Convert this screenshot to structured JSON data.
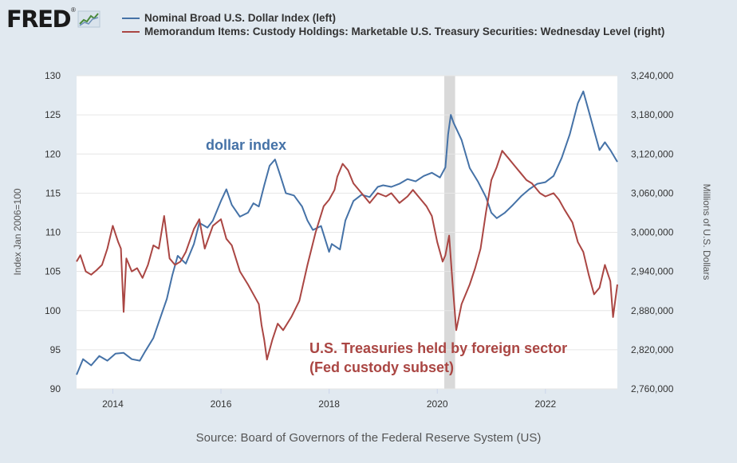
{
  "logo": {
    "text": "FRED",
    "registered": "®",
    "icon": "fred-chart-icon"
  },
  "legend": [
    {
      "label": "Nominal Broad U.S. Dollar Index (left)",
      "color": "#4572a7"
    },
    {
      "label": "Memorandum Items: Custody Holdings: Marketable U.S. Treasury Securities: Wednesday Level (right)",
      "color": "#aa4643"
    }
  ],
  "source": "Source: Board of Governors of the Federal Reserve System (US)",
  "chart_data": {
    "type": "line",
    "title": "",
    "xlabel": "",
    "ylabel_left": "Index Jan 2006=100",
    "ylabel_right": "Millions of U.S. Dollars",
    "x_ticks": [
      "2014",
      "2016",
      "2018",
      "2020",
      "2022"
    ],
    "y_left_ticks": [
      "130",
      "125",
      "120",
      "115",
      "110",
      "105",
      "100",
      "95",
      "90"
    ],
    "y_right_ticks": [
      "3,240,000",
      "3,180,000",
      "3,120,000",
      "3,060,000",
      "3,000,000",
      "2,940,000",
      "2,880,000",
      "2,820,000",
      "2,760,000"
    ],
    "xlim": [
      2013.33,
      2023.33
    ],
    "ylim_left": [
      90,
      130
    ],
    "ylim_right": [
      2760000,
      3240000
    ],
    "recession_shading": [
      2020.13,
      2020.33
    ],
    "grid": true,
    "annotations": [
      {
        "text": "dollar index",
        "color": "#4572a7"
      },
      {
        "text": "U.S. Treasuries held by foreign sector",
        "color": "#aa4643"
      },
      {
        "text": "(Fed custody subset)",
        "color": "#aa4643"
      }
    ],
    "series": [
      {
        "name": "Nominal Broad U.S. Dollar Index (left)",
        "axis": "left",
        "color": "#4572a7",
        "x": [
          2013.33,
          2013.45,
          2013.6,
          2013.75,
          2013.9,
          2014.05,
          2014.2,
          2014.35,
          2014.5,
          2014.6,
          2014.75,
          2014.9,
          2015.0,
          2015.1,
          2015.2,
          2015.35,
          2015.5,
          2015.6,
          2015.75,
          2015.85,
          2016.0,
          2016.1,
          2016.2,
          2016.35,
          2016.5,
          2016.6,
          2016.7,
          2016.8,
          2016.9,
          2017.0,
          2017.1,
          2017.2,
          2017.35,
          2017.5,
          2017.6,
          2017.7,
          2017.85,
          2018.0,
          2018.05,
          2018.2,
          2018.3,
          2018.45,
          2018.6,
          2018.75,
          2018.9,
          2019.0,
          2019.15,
          2019.3,
          2019.45,
          2019.6,
          2019.75,
          2019.9,
          2020.05,
          2020.15,
          2020.2,
          2020.25,
          2020.3,
          2020.45,
          2020.6,
          2020.75,
          2020.9,
          2021.0,
          2021.1,
          2021.25,
          2021.4,
          2021.55,
          2021.7,
          2021.85,
          2022.0,
          2022.15,
          2022.3,
          2022.45,
          2022.6,
          2022.7,
          2022.8,
          2022.9,
          2023.0,
          2023.1,
          2023.2,
          2023.33
        ],
        "values": [
          91.8,
          93.8,
          93.0,
          94.2,
          93.6,
          94.5,
          94.6,
          93.8,
          93.6,
          94.8,
          96.5,
          99.5,
          101.5,
          104.5,
          107.0,
          106.0,
          108.5,
          111.2,
          110.6,
          111.5,
          114.0,
          115.5,
          113.5,
          112.0,
          112.5,
          113.7,
          113.3,
          116.0,
          118.5,
          119.3,
          117.2,
          115.0,
          114.7,
          113.3,
          111.5,
          110.3,
          110.8,
          107.5,
          108.5,
          107.8,
          111.5,
          114.0,
          114.8,
          114.5,
          115.8,
          116.0,
          115.8,
          116.2,
          116.8,
          116.5,
          117.2,
          117.6,
          117.0,
          118.3,
          122.5,
          125.0,
          124.0,
          121.8,
          118.2,
          116.5,
          114.5,
          112.5,
          111.8,
          112.5,
          113.5,
          114.6,
          115.5,
          116.2,
          116.4,
          117.2,
          119.5,
          122.5,
          126.5,
          128.0,
          125.5,
          123.0,
          120.5,
          121.5,
          120.5,
          119.0
        ]
      },
      {
        "name": "Memorandum Items: Custody Holdings: Marketable U.S. Treasury Securities: Wednesday Level (right)",
        "axis": "right",
        "color": "#aa4643",
        "x": [
          2013.33,
          2013.4,
          2013.5,
          2013.6,
          2013.7,
          2013.8,
          2013.9,
          2014.0,
          2014.1,
          2014.15,
          2014.2,
          2014.25,
          2014.35,
          2014.45,
          2014.55,
          2014.65,
          2014.75,
          2014.85,
          2014.95,
          2015.05,
          2015.15,
          2015.25,
          2015.35,
          2015.5,
          2015.6,
          2015.7,
          2015.85,
          2016.0,
          2016.1,
          2016.2,
          2016.35,
          2016.5,
          2016.6,
          2016.7,
          2016.75,
          2016.8,
          2016.85,
          2016.95,
          2017.05,
          2017.15,
          2017.3,
          2017.45,
          2017.6,
          2017.75,
          2017.9,
          2018.0,
          2018.1,
          2018.15,
          2018.25,
          2018.35,
          2018.45,
          2018.6,
          2018.75,
          2018.9,
          2019.05,
          2019.15,
          2019.3,
          2019.45,
          2019.55,
          2019.7,
          2019.8,
          2019.9,
          2020.0,
          2020.1,
          2020.15,
          2020.22,
          2020.28,
          2020.35,
          2020.45,
          2020.6,
          2020.7,
          2020.8,
          2020.9,
          2021.0,
          2021.1,
          2021.2,
          2021.3,
          2021.45,
          2021.55,
          2021.65,
          2021.75,
          2021.9,
          2022.0,
          2022.15,
          2022.25,
          2022.35,
          2022.5,
          2022.6,
          2022.7,
          2022.8,
          2022.9,
          2023.0,
          2023.1,
          2023.2,
          2023.25,
          2023.33
        ],
        "values": [
          2955000,
          2965000,
          2940000,
          2935000,
          2942000,
          2950000,
          2975000,
          3010000,
          2985000,
          2975000,
          2878000,
          2960000,
          2940000,
          2945000,
          2930000,
          2950000,
          2980000,
          2975000,
          3025000,
          2960000,
          2950000,
          2955000,
          2970000,
          3005000,
          3020000,
          2975000,
          3010000,
          3020000,
          2990000,
          2980000,
          2940000,
          2920000,
          2905000,
          2890000,
          2858000,
          2835000,
          2805000,
          2835000,
          2860000,
          2850000,
          2870000,
          2895000,
          2950000,
          3000000,
          3040000,
          3050000,
          3065000,
          3085000,
          3105000,
          3095000,
          3075000,
          3060000,
          3045000,
          3060000,
          3055000,
          3060000,
          3045000,
          3055000,
          3065000,
          3050000,
          3040000,
          3025000,
          2985000,
          2955000,
          2965000,
          2995000,
          2925000,
          2850000,
          2890000,
          2920000,
          2945000,
          2975000,
          3030000,
          3080000,
          3100000,
          3125000,
          3115000,
          3100000,
          3090000,
          3080000,
          3075000,
          3060000,
          3055000,
          3060000,
          3050000,
          3035000,
          3015000,
          2985000,
          2970000,
          2935000,
          2905000,
          2915000,
          2950000,
          2925000,
          2870000,
          2920000
        ]
      }
    ]
  }
}
